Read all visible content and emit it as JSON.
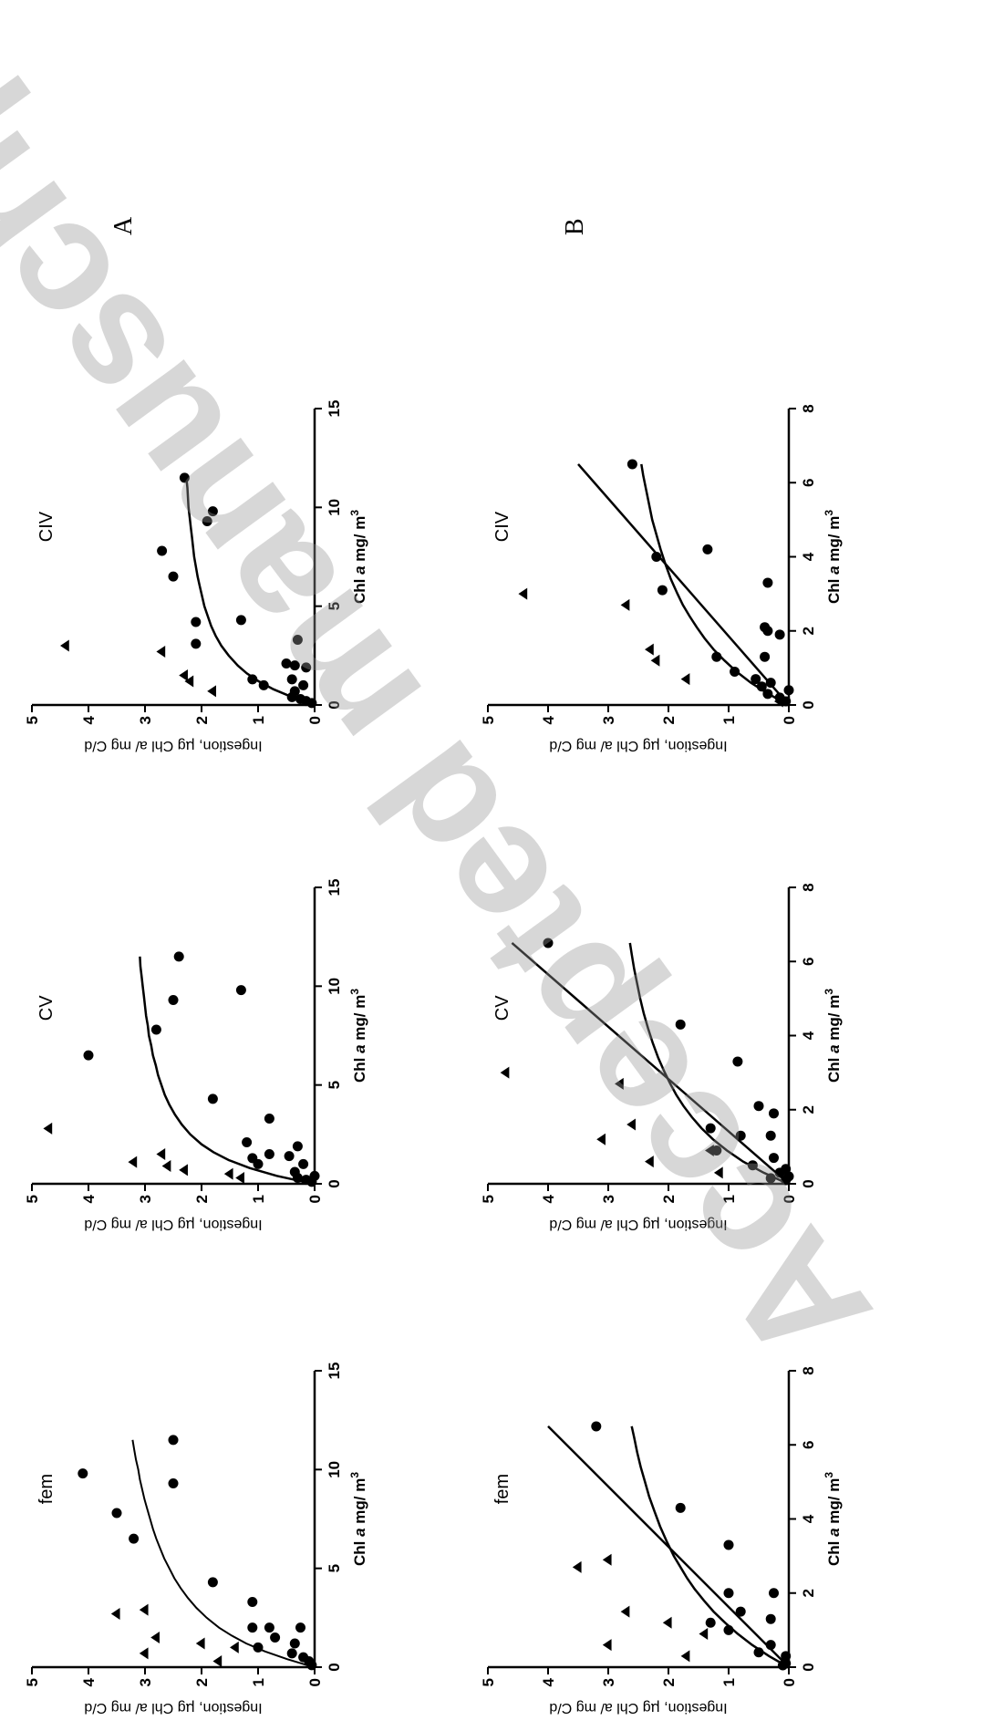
{
  "figure": {
    "row_labels": [
      "A",
      "B"
    ],
    "watermark": "Accepted manuscript",
    "ytitle_prefix": "Ingestion, ",
    "ytitle_mu": "µ",
    "ytitle_suffix": "g Chl a/ mg C/d",
    "xtitle_prefix": "Chl ",
    "xtitle_italic": "a",
    "xtitle_unit": " mg/ m",
    "xtitle_sup": "3"
  },
  "chart_data": [
    {
      "type": "scatter",
      "row": "A",
      "title": "fem",
      "xlim": [
        0,
        15
      ],
      "xticks": [
        "0",
        "5",
        "10",
        "15"
      ],
      "ylim": [
        0,
        5
      ],
      "yticks": [
        "0",
        "1",
        "2",
        "3",
        "4",
        "5"
      ],
      "series": [
        {
          "marker": "circle",
          "points": [
            [
              0.1,
              0.05
            ],
            [
              0.3,
              0.1
            ],
            [
              0.5,
              0.2
            ],
            [
              0.7,
              0.4
            ],
            [
              1.0,
              1.0
            ],
            [
              1.2,
              0.35
            ],
            [
              1.5,
              0.7
            ],
            [
              2.0,
              0.8
            ],
            [
              2.0,
              0.25
            ],
            [
              2.0,
              1.1
            ],
            [
              3.3,
              1.1
            ],
            [
              4.3,
              1.8
            ],
            [
              6.5,
              3.2
            ],
            [
              7.8,
              3.5
            ],
            [
              9.8,
              4.1
            ],
            [
              9.3,
              2.5
            ],
            [
              11.5,
              2.5
            ]
          ]
        },
        {
          "marker": "triangle",
          "points": [
            [
              0.3,
              1.7
            ],
            [
              0.7,
              3.0
            ],
            [
              1.0,
              1.4
            ],
            [
              1.2,
              2.0
            ],
            [
              1.5,
              2.8
            ],
            [
              2.7,
              3.5
            ],
            [
              2.9,
              3.0
            ]
          ]
        }
      ],
      "curves": [
        {
          "kind": "saturating",
          "x": [
            0.1,
            0.4,
            0.8,
            1.2,
            1.6,
            2.0,
            2.5,
            3.0,
            3.5,
            4.0,
            4.5,
            5.0,
            5.5,
            6.0,
            6.5,
            7.0,
            7.5,
            8.0,
            8.5,
            9.0,
            9.5,
            10.0,
            10.5,
            11.0,
            11.5
          ],
          "y": [
            0.13,
            0.48,
            0.88,
            1.21,
            1.47,
            1.69,
            1.91,
            2.09,
            2.24,
            2.37,
            2.48,
            2.57,
            2.66,
            2.73,
            2.8,
            2.86,
            2.91,
            2.96,
            3.01,
            3.05,
            3.09,
            3.12,
            3.16,
            3.19,
            3.22
          ]
        }
      ]
    },
    {
      "type": "scatter",
      "row": "A",
      "title": "CV",
      "xlim": [
        0,
        15
      ],
      "xticks": [
        "0",
        "5",
        "10",
        "15"
      ],
      "ylim": [
        0,
        5
      ],
      "yticks": [
        "0",
        "1",
        "2",
        "3",
        "4",
        "5"
      ],
      "series": [
        {
          "marker": "circle",
          "points": [
            [
              0.1,
              0.05
            ],
            [
              0.2,
              0.15
            ],
            [
              0.3,
              0.3
            ],
            [
              0.4,
              0.0
            ],
            [
              0.6,
              0.35
            ],
            [
              1.0,
              0.2
            ],
            [
              1.0,
              1.0
            ],
            [
              1.3,
              1.1
            ],
            [
              1.4,
              0.45
            ],
            [
              1.5,
              0.8
            ],
            [
              1.9,
              0.3
            ],
            [
              2.1,
              1.2
            ],
            [
              3.3,
              0.8
            ],
            [
              4.3,
              1.8
            ],
            [
              6.5,
              4.0
            ],
            [
              7.8,
              2.8
            ],
            [
              9.3,
              2.5
            ],
            [
              9.8,
              1.3
            ],
            [
              11.5,
              2.4
            ]
          ]
        },
        {
          "marker": "triangle",
          "points": [
            [
              0.3,
              1.3
            ],
            [
              0.5,
              1.5
            ],
            [
              0.7,
              2.3
            ],
            [
              0.9,
              2.6
            ],
            [
              1.1,
              3.2
            ],
            [
              1.5,
              2.7
            ],
            [
              2.8,
              4.7
            ]
          ]
        }
      ],
      "curves": [
        {
          "kind": "saturating",
          "x": [
            0.1,
            0.4,
            0.8,
            1.2,
            1.6,
            2.0,
            2.5,
            3.0,
            3.5,
            4.0,
            4.5,
            5.0,
            5.5,
            6.0,
            6.5,
            7.0,
            7.5,
            8.0,
            8.5,
            9.0,
            9.5,
            10.0,
            10.5,
            11.0,
            11.5
          ],
          "y": [
            0.19,
            0.67,
            1.15,
            1.52,
            1.79,
            2.0,
            2.2,
            2.35,
            2.47,
            2.57,
            2.65,
            2.71,
            2.77,
            2.81,
            2.86,
            2.89,
            2.93,
            2.95,
            2.98,
            3.0,
            3.02,
            3.04,
            3.06,
            3.08,
            3.09
          ]
        }
      ]
    },
    {
      "type": "scatter",
      "row": "A",
      "title": "CIV",
      "xlim": [
        0,
        15
      ],
      "xticks": [
        "0",
        "5",
        "10",
        "15"
      ],
      "ylim": [
        0,
        5
      ],
      "yticks": [
        "0",
        "1",
        "2",
        "3",
        "4",
        "5"
      ],
      "series": [
        {
          "marker": "circle",
          "points": [
            [
              0.1,
              0.05
            ],
            [
              0.2,
              0.15
            ],
            [
              0.3,
              0.25
            ],
            [
              0.4,
              0.4
            ],
            [
              0.7,
              0.35
            ],
            [
              1.0,
              0.9
            ],
            [
              1.0,
              0.2
            ],
            [
              1.3,
              1.1
            ],
            [
              1.3,
              0.4
            ],
            [
              1.9,
              0.15
            ],
            [
              2.0,
              0.35
            ],
            [
              2.1,
              0.5
            ],
            [
              3.1,
              2.1
            ],
            [
              3.3,
              0.3
            ],
            [
              4.2,
              2.1
            ],
            [
              4.3,
              1.3
            ],
            [
              6.5,
              2.5
            ],
            [
              7.8,
              2.7
            ],
            [
              9.3,
              1.9
            ],
            [
              9.8,
              1.8
            ],
            [
              11.5,
              2.3
            ]
          ]
        },
        {
          "marker": "triangle",
          "points": [
            [
              0.7,
              1.8
            ],
            [
              1.2,
              2.2
            ],
            [
              1.5,
              2.3
            ],
            [
              2.7,
              2.7
            ],
            [
              3.0,
              4.4
            ]
          ]
        }
      ],
      "curves": [
        {
          "kind": "saturating",
          "x": [
            0.1,
            0.4,
            0.8,
            1.2,
            1.6,
            2.0,
            2.5,
            3.0,
            3.5,
            4.0,
            4.5,
            5.0,
            5.5,
            6.0,
            6.5,
            7.0,
            7.5,
            8.0,
            8.5,
            9.0,
            9.5,
            10.0,
            10.5,
            11.0,
            11.5
          ],
          "y": [
            0.11,
            0.4,
            0.73,
            0.99,
            1.2,
            1.36,
            1.52,
            1.65,
            1.75,
            1.83,
            1.89,
            1.95,
            1.99,
            2.03,
            2.07,
            2.1,
            2.13,
            2.15,
            2.17,
            2.19,
            2.21,
            2.23,
            2.24,
            2.25,
            2.27
          ]
        }
      ]
    },
    {
      "type": "scatter",
      "row": "B",
      "title": "fem",
      "xlim": [
        0,
        8
      ],
      "xticks": [
        "0",
        "2",
        "4",
        "6",
        "8"
      ],
      "ylim": [
        0,
        5
      ],
      "yticks": [
        "0",
        "1",
        "2",
        "3",
        "4",
        "5"
      ],
      "series": [
        {
          "marker": "circle",
          "points": [
            [
              0.05,
              0.1
            ],
            [
              0.1,
              0.05
            ],
            [
              0.3,
              0.05
            ],
            [
              0.4,
              0.5
            ],
            [
              0.6,
              0.3
            ],
            [
              1.0,
              1.0
            ],
            [
              1.2,
              1.3
            ],
            [
              1.3,
              0.3
            ],
            [
              1.5,
              0.8
            ],
            [
              2.0,
              1.0
            ],
            [
              2.0,
              0.25
            ],
            [
              3.3,
              1.0
            ],
            [
              4.3,
              1.8
            ],
            [
              6.5,
              3.2
            ]
          ]
        },
        {
          "marker": "triangle",
          "points": [
            [
              0.3,
              1.7
            ],
            [
              0.6,
              3.0
            ],
            [
              0.9,
              1.4
            ],
            [
              1.2,
              2.0
            ],
            [
              1.5,
              2.7
            ],
            [
              2.7,
              3.5
            ],
            [
              2.9,
              3.0
            ]
          ]
        }
      ],
      "curves": [
        {
          "kind": "saturating",
          "x": [
            0.05,
            0.3,
            0.6,
            0.9,
            1.2,
            1.5,
            1.8,
            2.1,
            2.4,
            2.7,
            3.0,
            3.4,
            3.8,
            4.2,
            4.6,
            5.0,
            5.4,
            5.8,
            6.2,
            6.5
          ],
          "y": [
            0.06,
            0.33,
            0.61,
            0.85,
            1.06,
            1.25,
            1.41,
            1.56,
            1.69,
            1.8,
            1.91,
            2.03,
            2.14,
            2.23,
            2.32,
            2.39,
            2.46,
            2.52,
            2.57,
            2.61
          ]
        },
        {
          "kind": "linear",
          "x": [
            0,
            6.5
          ],
          "y": [
            0.0,
            4.0
          ]
        }
      ]
    },
    {
      "type": "scatter",
      "row": "B",
      "title": "CV",
      "xlim": [
        0,
        8
      ],
      "xticks": [
        "0",
        "2",
        "4",
        "6",
        "8"
      ],
      "ylim": [
        0,
        5
      ],
      "yticks": [
        "0",
        "1",
        "2",
        "3",
        "4",
        "5"
      ],
      "series": [
        {
          "marker": "circle",
          "points": [
            [
              0.1,
              0.05
            ],
            [
              0.15,
              0.3
            ],
            [
              0.2,
              0.0
            ],
            [
              0.3,
              0.15
            ],
            [
              0.4,
              0.05
            ],
            [
              0.5,
              0.6
            ],
            [
              0.7,
              0.25
            ],
            [
              0.9,
              1.2
            ],
            [
              1.3,
              0.8
            ],
            [
              1.3,
              0.3
            ],
            [
              1.5,
              1.3
            ],
            [
              1.9,
              0.25
            ],
            [
              2.1,
              0.5
            ],
            [
              3.3,
              0.85
            ],
            [
              4.3,
              1.8
            ],
            [
              6.5,
              4.0
            ]
          ]
        },
        {
          "marker": "triangle",
          "points": [
            [
              0.3,
              1.15
            ],
            [
              0.6,
              2.3
            ],
            [
              0.9,
              1.3
            ],
            [
              1.2,
              3.1
            ],
            [
              1.6,
              2.6
            ],
            [
              2.7,
              2.8
            ],
            [
              3.0,
              4.7
            ]
          ]
        }
      ],
      "curves": [
        {
          "kind": "saturating",
          "x": [
            0.05,
            0.3,
            0.6,
            0.9,
            1.2,
            1.5,
            1.8,
            2.1,
            2.4,
            2.7,
            3.0,
            3.4,
            3.8,
            4.2,
            4.6,
            5.0,
            5.4,
            5.8,
            6.2,
            6.5
          ],
          "y": [
            0.08,
            0.42,
            0.76,
            1.03,
            1.26,
            1.45,
            1.61,
            1.75,
            1.87,
            1.97,
            2.06,
            2.17,
            2.26,
            2.34,
            2.41,
            2.47,
            2.52,
            2.57,
            2.61,
            2.64
          ]
        },
        {
          "kind": "linear",
          "x": [
            0,
            6.5
          ],
          "y": [
            0.0,
            4.6
          ]
        }
      ]
    },
    {
      "type": "scatter",
      "row": "B",
      "title": "CIV",
      "xlim": [
        0,
        8
      ],
      "xticks": [
        "0",
        "2",
        "4",
        "6",
        "8"
      ],
      "ylim": [
        0,
        5
      ],
      "yticks": [
        "0",
        "1",
        "2",
        "3",
        "4",
        "5"
      ],
      "series": [
        {
          "marker": "circle",
          "points": [
            [
              0.1,
              0.05
            ],
            [
              0.2,
              0.15
            ],
            [
              0.3,
              0.35
            ],
            [
              0.4,
              0.0
            ],
            [
              0.5,
              0.45
            ],
            [
              0.6,
              0.3
            ],
            [
              0.7,
              0.55
            ],
            [
              0.9,
              0.9
            ],
            [
              1.3,
              1.2
            ],
            [
              1.3,
              0.4
            ],
            [
              1.9,
              0.15
            ],
            [
              2.0,
              0.35
            ],
            [
              2.1,
              0.4
            ],
            [
              3.1,
              2.1
            ],
            [
              3.3,
              0.35
            ],
            [
              4.0,
              2.2
            ],
            [
              4.2,
              1.35
            ],
            [
              6.5,
              2.6
            ]
          ]
        },
        {
          "marker": "triangle",
          "points": [
            [
              0.1,
              0.15
            ],
            [
              0.7,
              1.7
            ],
            [
              1.2,
              2.2
            ],
            [
              1.5,
              2.3
            ],
            [
              2.7,
              2.7
            ],
            [
              3.0,
              4.4
            ]
          ]
        }
      ],
      "curves": [
        {
          "kind": "saturating",
          "x": [
            0.05,
            0.3,
            0.6,
            0.9,
            1.2,
            1.5,
            1.8,
            2.1,
            2.4,
            2.7,
            3.0,
            3.4,
            3.8,
            4.2,
            4.6,
            5.0,
            5.4,
            5.8,
            6.2,
            6.5
          ],
          "y": [
            0.06,
            0.34,
            0.63,
            0.87,
            1.07,
            1.25,
            1.4,
            1.53,
            1.65,
            1.76,
            1.85,
            1.96,
            2.05,
            2.13,
            2.2,
            2.27,
            2.32,
            2.37,
            2.42,
            2.45
          ]
        },
        {
          "kind": "linear",
          "x": [
            0,
            6.5
          ],
          "y": [
            0.0,
            3.5
          ]
        }
      ]
    }
  ]
}
